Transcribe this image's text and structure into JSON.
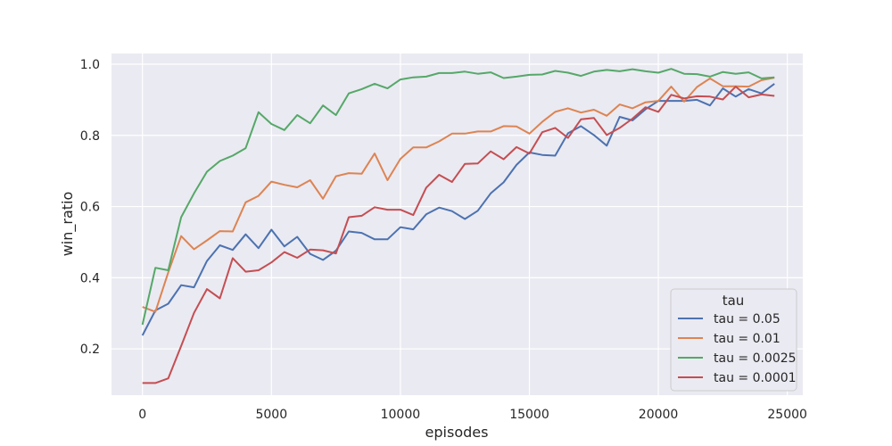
{
  "chart_data": {
    "type": "line",
    "xlabel": "episodes",
    "ylabel": "win_ratio",
    "xlim": [
      -1200,
      25600
    ],
    "ylim": [
      0.07,
      1.03
    ],
    "xticks": [
      0,
      5000,
      10000,
      15000,
      20000,
      25000
    ],
    "yticks": [
      0.2,
      0.4,
      0.6,
      0.8,
      1.0
    ],
    "xtick_labels": [
      "0",
      "5000",
      "10000",
      "15000",
      "20000",
      "25000"
    ],
    "ytick_labels": [
      "0.2",
      "0.4",
      "0.6",
      "0.8",
      "1.0"
    ],
    "grid": true,
    "background": "#eaeaf2",
    "legend": {
      "title": "tau",
      "placement": "lower-right"
    },
    "x": [
      0,
      500,
      1000,
      1500,
      2000,
      2500,
      3000,
      3500,
      4000,
      4500,
      5000,
      5500,
      6000,
      6500,
      7000,
      7500,
      8000,
      8500,
      9000,
      9500,
      10000,
      10500,
      11000,
      11500,
      12000,
      12500,
      13000,
      13500,
      14000,
      14500,
      15000,
      15500,
      16000,
      16500,
      17000,
      17500,
      18000,
      18500,
      19000,
      19500,
      20000,
      20500,
      21000,
      21500,
      22000,
      22500,
      23000,
      23500,
      24000,
      24500
    ],
    "series": [
      {
        "name": "tau = 0.05",
        "color": "#4c72b0",
        "values": [
          0.238,
          0.308,
          0.327,
          0.379,
          0.373,
          0.447,
          0.491,
          0.478,
          0.522,
          0.483,
          0.535,
          0.488,
          0.515,
          0.467,
          0.45,
          0.476,
          0.53,
          0.526,
          0.508,
          0.508,
          0.542,
          0.536,
          0.578,
          0.597,
          0.587,
          0.565,
          0.588,
          0.637,
          0.668,
          0.717,
          0.752,
          0.745,
          0.743,
          0.806,
          0.826,
          0.801,
          0.771,
          0.852,
          0.842,
          0.873,
          0.897,
          0.897,
          0.897,
          0.9,
          0.884,
          0.932,
          0.909,
          0.93,
          0.918,
          0.945
        ]
      },
      {
        "name": "tau = 0.01",
        "color": "#dd8452",
        "values": [
          0.318,
          0.304,
          0.415,
          0.517,
          0.48,
          0.505,
          0.531,
          0.53,
          0.612,
          0.63,
          0.67,
          0.661,
          0.654,
          0.674,
          0.622,
          0.685,
          0.694,
          0.692,
          0.749,
          0.674,
          0.734,
          0.766,
          0.766,
          0.783,
          0.805,
          0.805,
          0.811,
          0.811,
          0.826,
          0.825,
          0.805,
          0.838,
          0.866,
          0.876,
          0.864,
          0.872,
          0.855,
          0.887,
          0.876,
          0.893,
          0.897,
          0.937,
          0.895,
          0.936,
          0.96,
          0.938,
          0.938,
          0.937,
          0.955,
          0.962
        ]
      },
      {
        "name": "tau = 0.0025",
        "color": "#55a868",
        "values": [
          0.268,
          0.428,
          0.421,
          0.57,
          0.637,
          0.698,
          0.728,
          0.743,
          0.764,
          0.865,
          0.832,
          0.815,
          0.857,
          0.834,
          0.884,
          0.857,
          0.918,
          0.93,
          0.945,
          0.932,
          0.957,
          0.963,
          0.965,
          0.975,
          0.975,
          0.979,
          0.973,
          0.977,
          0.961,
          0.965,
          0.97,
          0.971,
          0.981,
          0.976,
          0.967,
          0.979,
          0.984,
          0.98,
          0.986,
          0.98,
          0.976,
          0.987,
          0.973,
          0.972,
          0.965,
          0.978,
          0.973,
          0.977,
          0.96,
          0.963
        ]
      },
      {
        "name": "tau = 0.0001",
        "color": "#c44e52",
        "values": [
          0.104,
          0.104,
          0.117,
          0.208,
          0.301,
          0.368,
          0.342,
          0.455,
          0.417,
          0.421,
          0.443,
          0.472,
          0.456,
          0.479,
          0.477,
          0.468,
          0.57,
          0.574,
          0.598,
          0.591,
          0.591,
          0.576,
          0.653,
          0.689,
          0.669,
          0.72,
          0.721,
          0.755,
          0.733,
          0.767,
          0.749,
          0.809,
          0.821,
          0.793,
          0.845,
          0.849,
          0.801,
          0.821,
          0.847,
          0.879,
          0.866,
          0.914,
          0.904,
          0.91,
          0.909,
          0.901,
          0.937,
          0.907,
          0.915,
          0.911
        ]
      }
    ]
  }
}
